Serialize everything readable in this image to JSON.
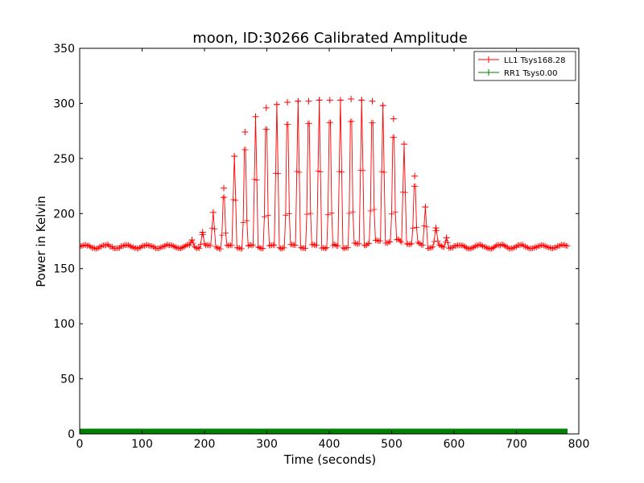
{
  "chart_data": {
    "type": "line",
    "title": "moon, ID:30266 Calibrated Amplitude",
    "xlabel": "Time (seconds)",
    "ylabel": "Power in Kelvin",
    "xlim": [
      0,
      800
    ],
    "ylim": [
      0,
      350
    ],
    "xticks": [
      0,
      100,
      200,
      300,
      400,
      500,
      600,
      700,
      800
    ],
    "yticks": [
      0,
      50,
      100,
      150,
      200,
      250,
      300,
      350
    ],
    "grid": false,
    "legend_position": "top-right",
    "series": [
      {
        "name": "LL1 Tsys168.28",
        "color": "#ff0000",
        "marker": "plus",
        "baseline": 170,
        "baseline_rises_to": 175,
        "x_range": [
          0,
          782
        ],
        "sample_interval": 2,
        "sweep_peaks": [
          {
            "x": 180,
            "y": 176
          },
          {
            "x": 197,
            "y": 183
          },
          {
            "x": 214,
            "y": 201
          },
          {
            "x": 231,
            "y": 223
          },
          {
            "x": 248,
            "y": 252
          },
          {
            "x": 265,
            "y": 274
          },
          {
            "x": 282,
            "y": 288
          },
          {
            "x": 299,
            "y": 296
          },
          {
            "x": 316,
            "y": 299
          },
          {
            "x": 333,
            "y": 301
          },
          {
            "x": 350,
            "y": 302
          },
          {
            "x": 367,
            "y": 302
          },
          {
            "x": 384,
            "y": 303
          },
          {
            "x": 401,
            "y": 303
          },
          {
            "x": 418,
            "y": 303
          },
          {
            "x": 435,
            "y": 304
          },
          {
            "x": 452,
            "y": 303
          },
          {
            "x": 469,
            "y": 302
          },
          {
            "x": 486,
            "y": 298
          },
          {
            "x": 503,
            "y": 286
          },
          {
            "x": 520,
            "y": 263
          },
          {
            "x": 537,
            "y": 234
          },
          {
            "x": 554,
            "y": 206
          },
          {
            "x": 571,
            "y": 187
          },
          {
            "x": 588,
            "y": 178
          }
        ]
      },
      {
        "name": "RR1 Tsys0.00",
        "color": "#008000",
        "marker": "plus",
        "constant_y": 0,
        "x_range": [
          0,
          782
        ],
        "sample_interval": 2
      }
    ]
  }
}
